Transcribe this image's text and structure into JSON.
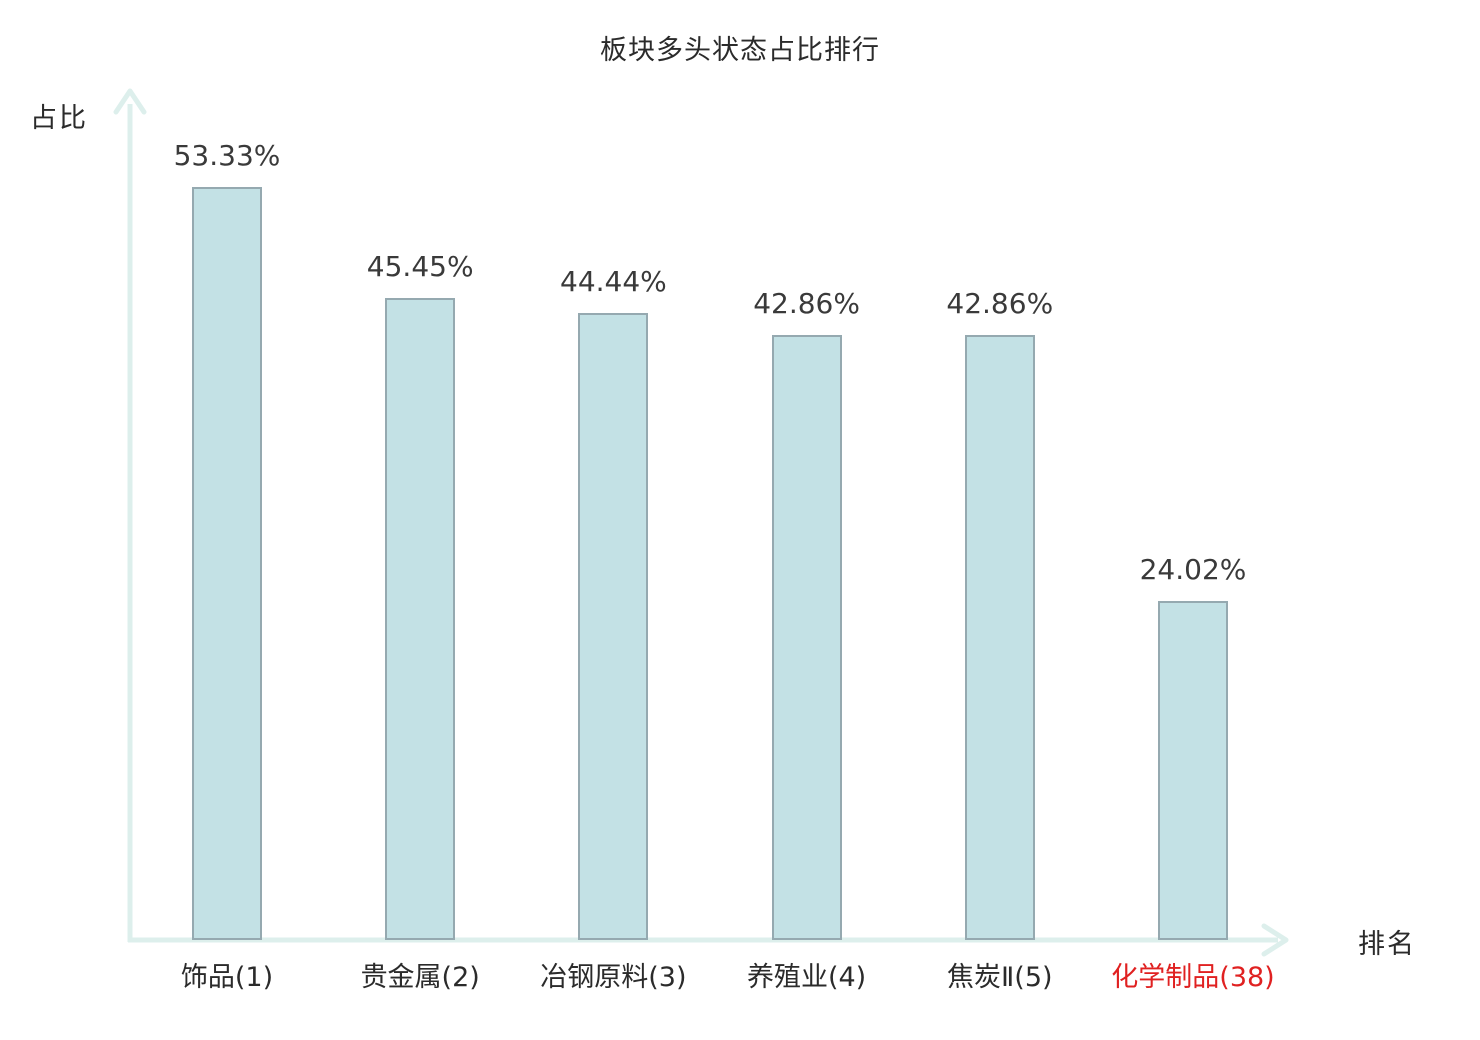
{
  "title": "板块多头状态占比排行",
  "y_axis_label": "占比",
  "x_axis_label": "排名",
  "chart_data": {
    "type": "bar",
    "title": "板块多头状态占比排行",
    "xlabel": "排名",
    "ylabel": "占比",
    "categories": [
      "饰品(1)",
      "贵金属(2)",
      "冶钢原料(3)",
      "养殖业(4)",
      "焦炭Ⅱ(5)",
      "化学制品(38)"
    ],
    "values": [
      53.33,
      45.45,
      44.44,
      42.86,
      42.86,
      24.02
    ],
    "value_labels": [
      "53.33%",
      "45.45%",
      "44.44%",
      "42.86%",
      "42.86%",
      "24.02%"
    ],
    "highlighted_category_index": 5,
    "ylim": [
      0,
      60
    ],
    "grid": false,
    "legend": "none",
    "colors": {
      "bar_fill": "#c3e1e5",
      "bar_border": "#95a9b0",
      "axis": "#ddefec",
      "text": "#3a3a3a",
      "label_text": "#2b2b2b",
      "highlight_text": "#e02121",
      "background": "#ffffff"
    }
  }
}
